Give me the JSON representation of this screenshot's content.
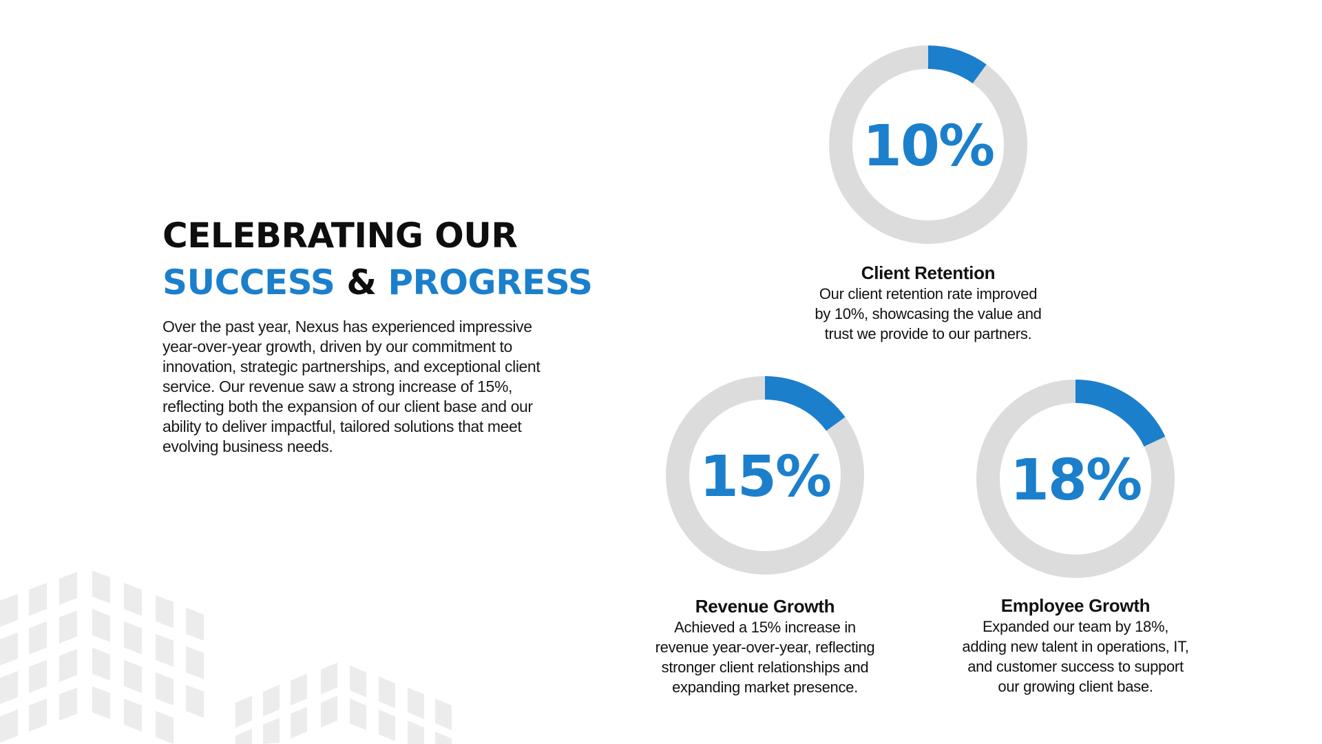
{
  "heading": {
    "line1": "CELEBRATING OUR",
    "word_success": "SUCCESS",
    "ampersand": "&",
    "word_progress": "PROGRESS"
  },
  "intro_lines": [
    "Over the past year, Nexus has experienced impressive",
    "year-over-year growth, driven by our commitment to",
    "innovation, strategic partnerships, and exceptional client",
    "service. Our revenue saw a strong increase of 15%,",
    "reflecting both the expansion of our client base and our",
    "ability to deliver impactful, tailored solutions that meet",
    "evolving business needs."
  ],
  "colors": {
    "accent": "#1b7fcc",
    "track": "#dcdcdc",
    "heading_dark": "#0e0e0e",
    "deco": "#ececec"
  },
  "chart_data": [
    {
      "type": "pie",
      "style": "donut-progress",
      "value": 10,
      "max": 100,
      "label": "10%",
      "title": "Client Retention",
      "description_lines": [
        "Our client retention rate improved",
        "by 10%, showcasing the value and",
        "trust we provide to our partners."
      ]
    },
    {
      "type": "pie",
      "style": "donut-progress",
      "value": 15,
      "max": 100,
      "label": "15%",
      "title": "Revenue Growth",
      "description_lines": [
        "Achieved a 15% increase in",
        "revenue year-over-year, reflecting",
        "stronger client relationships and",
        "expanding market presence."
      ]
    },
    {
      "type": "pie",
      "style": "donut-progress",
      "value": 18,
      "max": 100,
      "label": "18%",
      "title": "Employee Growth",
      "description_lines": [
        "Expanded our team by 18%,",
        "adding new talent in operations, IT,",
        "and customer success to support",
        "our growing client base."
      ]
    }
  ]
}
